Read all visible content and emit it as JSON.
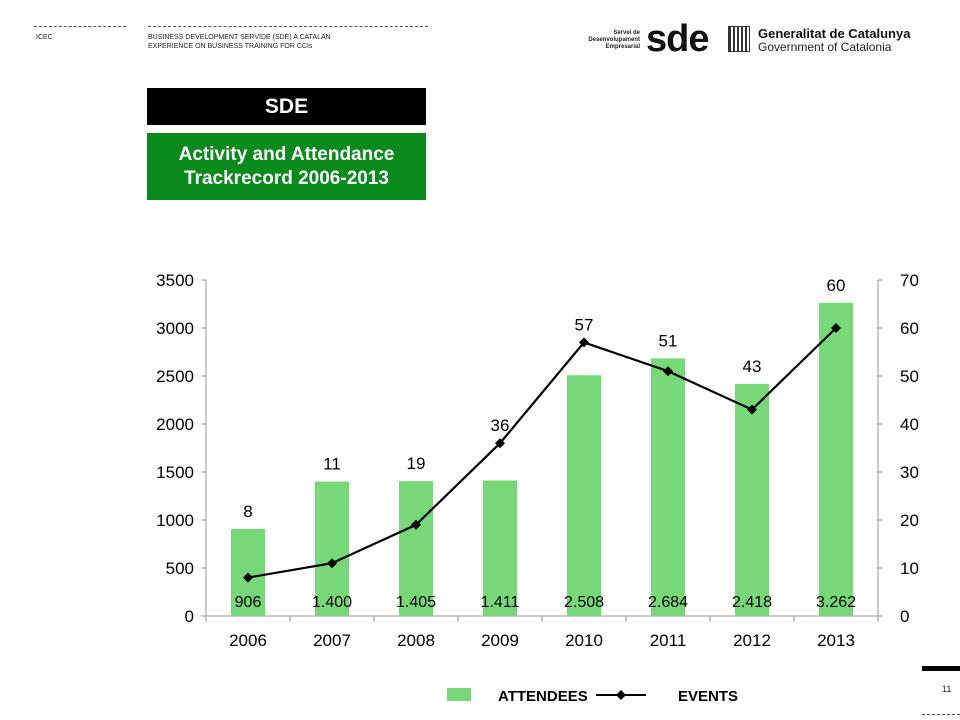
{
  "header": {
    "left_label": "ICEC",
    "subtitle_line1": "BUSINESS DEVELOPMENT SERVIDE (SDE) A CATALAN",
    "subtitle_line2": "EXPERIENCE ON BUSINESS TRAINING FOR CCIs",
    "sde_small_line1": "Servei de",
    "sde_small_line2": "Desenvolupament",
    "sde_small_line3": "Empresarial",
    "sde_big": "sde",
    "gen_line1": "Generalitat de Catalunya",
    "gen_line2": "Government of Catalonia"
  },
  "titles": {
    "black": "SDE",
    "green_line1": "Activity and Attendance",
    "green_line2": "Trackrecord 2006-2013"
  },
  "page_number": "11",
  "colors": {
    "bar": "#77d877",
    "line": "#000000",
    "title_green": "#0a8a1d"
  },
  "chart_data": {
    "type": "bar",
    "categories": [
      "2006",
      "2007",
      "2008",
      "2009",
      "2010",
      "2011",
      "2012",
      "2013"
    ],
    "series": [
      {
        "name": "ATTENDEES",
        "kind": "bar",
        "axis": "left",
        "values": [
          906,
          1400,
          1405,
          1411,
          2508,
          2684,
          2418,
          3262
        ],
        "labels": [
          "906",
          "1.400",
          "1.405",
          "1.411",
          "2.508",
          "2.684",
          "2.418",
          "3.262"
        ]
      },
      {
        "name": "EVENTS",
        "kind": "line",
        "axis": "right",
        "values": [
          8,
          11,
          19,
          36,
          57,
          51,
          43,
          60
        ],
        "labels": [
          "8",
          "11",
          "19",
          "36",
          "57",
          "51",
          "43",
          "60"
        ]
      }
    ],
    "ylim_left": [
      0,
      3500
    ],
    "yticks_left": [
      "0",
      "500",
      "1000",
      "1500",
      "2000",
      "2500",
      "3000",
      "3500"
    ],
    "ylim_right": [
      0,
      70
    ],
    "yticks_right": [
      "0",
      "10",
      "20",
      "30",
      "40",
      "50",
      "60",
      "70"
    ],
    "legend": "bottom",
    "grid": false
  }
}
